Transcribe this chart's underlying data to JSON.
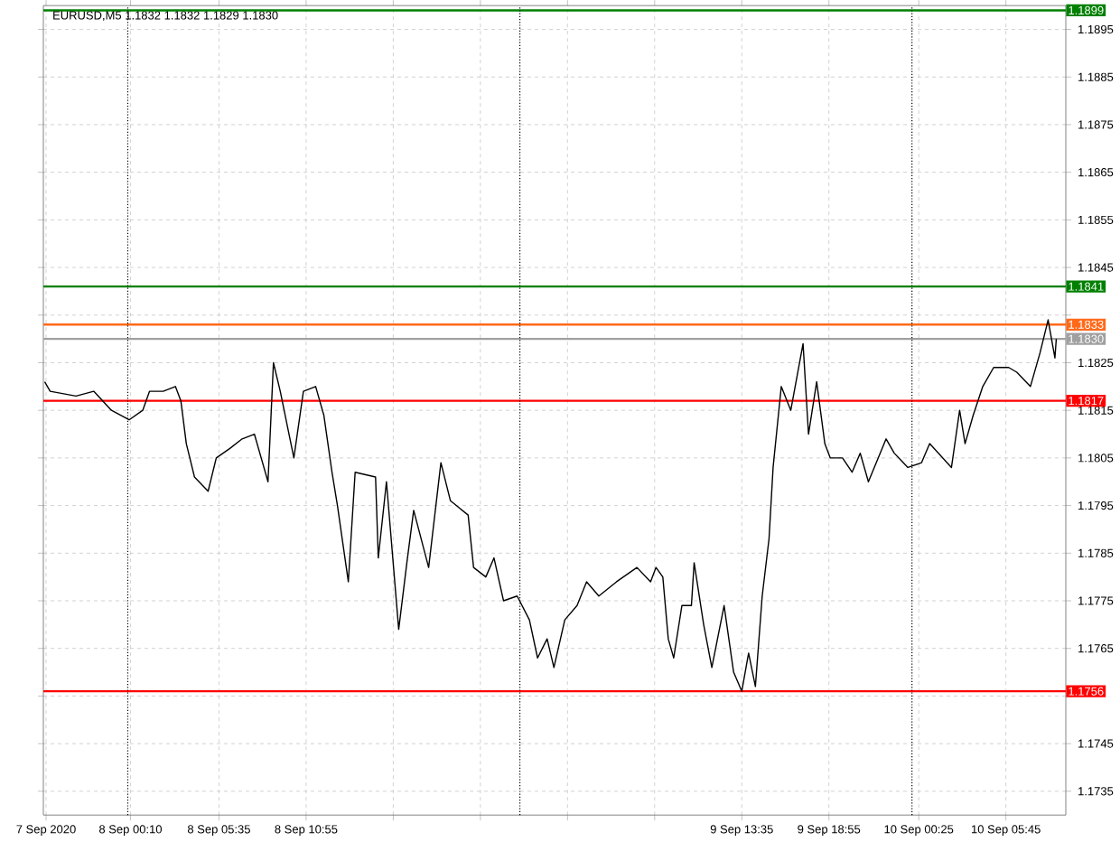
{
  "chart_data": {
    "type": "line",
    "title": "EURUSD,M5  1.1832 1.1832 1.1829 1.1830",
    "color": "#000000",
    "grid": true,
    "line_style": "solid",
    "marker": "none",
    "x": [
      "2020-09-07T18:55",
      "2020-09-07T19:15",
      "2020-09-07T20:50",
      "2020-09-07T21:55",
      "2020-09-07T23:00",
      "2020-09-08T00:05",
      "2020-09-08T00:55",
      "2020-09-08T01:20",
      "2020-09-08T02:10",
      "2020-09-08T02:55",
      "2020-09-08T03:15",
      "2020-09-08T03:35",
      "2020-09-08T04:05",
      "2020-09-08T04:55",
      "2020-09-08T05:25",
      "2020-09-08T06:15",
      "2020-09-08T07:00",
      "2020-09-08T07:45",
      "2020-09-08T08:35",
      "2020-09-08T08:55",
      "2020-09-08T09:20",
      "2020-09-08T10:10",
      "2020-09-08T10:45",
      "2020-09-08T11:30",
      "2020-09-08T12:00",
      "2020-09-08T12:30",
      "2020-09-08T12:50",
      "2020-09-08T13:30",
      "2020-09-08T13:55",
      "2020-09-08T15:10",
      "2020-09-08T15:20",
      "2020-09-08T15:50",
      "2020-09-08T16:35",
      "2020-09-08T17:05",
      "2020-09-08T17:30",
      "2020-09-08T18:25",
      "2020-09-08T19:10",
      "2020-09-08T19:45",
      "2020-09-08T20:50",
      "2020-09-08T21:10",
      "2020-09-08T21:55",
      "2020-09-08T22:25",
      "2020-09-08T23:00",
      "2020-09-08T23:50",
      "2020-09-09T00:35",
      "2020-09-09T01:05",
      "2020-09-09T01:40",
      "2020-09-09T02:05",
      "2020-09-09T02:45",
      "2020-09-09T03:30",
      "2020-09-09T04:05",
      "2020-09-09T04:50",
      "2020-09-09T05:55",
      "2020-09-09T07:10",
      "2020-09-09T08:00",
      "2020-09-09T08:20",
      "2020-09-09T08:45",
      "2020-09-09T09:05",
      "2020-09-09T09:25",
      "2020-09-09T09:55",
      "2020-09-09T10:30",
      "2020-09-09T10:40",
      "2020-09-09T11:15",
      "2020-09-09T11:45",
      "2020-09-09T12:30",
      "2020-09-09T13:05",
      "2020-09-09T13:35",
      "2020-09-09T14:00",
      "2020-09-09T14:25",
      "2020-09-09T14:50",
      "2020-09-09T15:15",
      "2020-09-09T15:30",
      "2020-09-09T16:00",
      "2020-09-09T16:35",
      "2020-09-09T17:20",
      "2020-09-09T17:40",
      "2020-09-09T18:10",
      "2020-09-09T18:40",
      "2020-09-09T19:00",
      "2020-09-09T19:45",
      "2020-09-09T20:20",
      "2020-09-09T20:50",
      "2020-09-09T21:20",
      "2020-09-09T22:25",
      "2020-09-09T22:55",
      "2020-09-09T23:45",
      "2020-09-10T00:35",
      "2020-09-10T01:05",
      "2020-09-10T02:25",
      "2020-09-10T02:55",
      "2020-09-10T03:15",
      "2020-09-10T03:45",
      "2020-09-10T04:20",
      "2020-09-10T05:00",
      "2020-09-10T05:55",
      "2020-09-10T06:25",
      "2020-09-10T07:15",
      "2020-09-10T07:50",
      "2020-09-10T08:20",
      "2020-09-10T08:45",
      "2020-09-10T08:50"
    ],
    "values": [
      1.1821,
      1.1819,
      1.1818,
      1.1819,
      1.1815,
      1.1813,
      1.1815,
      1.1819,
      1.1819,
      1.182,
      1.1817,
      1.1808,
      1.1801,
      1.1798,
      1.1805,
      1.1807,
      1.1809,
      1.181,
      1.18,
      1.1825,
      1.1819,
      1.1805,
      1.1819,
      1.182,
      1.1814,
      1.1802,
      1.1795,
      1.1779,
      1.1802,
      1.1801,
      1.1784,
      1.18,
      1.1769,
      1.1783,
      1.1794,
      1.1782,
      1.1804,
      1.1796,
      1.1793,
      1.1782,
      1.178,
      1.1784,
      1.1775,
      1.1776,
      1.1771,
      1.1763,
      1.1767,
      1.1761,
      1.1771,
      1.1774,
      1.1779,
      1.1776,
      1.1779,
      1.1782,
      1.1779,
      1.1782,
      1.178,
      1.1767,
      1.1763,
      1.1774,
      1.1774,
      1.1783,
      1.177,
      1.1761,
      1.1774,
      1.176,
      1.1756,
      1.1764,
      1.1757,
      1.1776,
      1.1788,
      1.1803,
      1.182,
      1.1815,
      1.1829,
      1.181,
      1.1821,
      1.1808,
      1.1805,
      1.1805,
      1.1802,
      1.1806,
      1.18,
      1.1809,
      1.1806,
      1.1803,
      1.1804,
      1.1808,
      1.1803,
      1.1815,
      1.1808,
      1.1814,
      1.182,
      1.1824,
      1.1824,
      1.1823,
      1.182,
      1.1827,
      1.1834,
      1.1826,
      1.183
    ],
    "xlim": [
      "2020-09-07T18:50",
      "2020-09-10T09:25"
    ],
    "ylim": [
      1.173,
      1.19
    ],
    "xticks": [
      {
        "value": "2020-09-07T19:00",
        "label": "7 Sep 2020"
      },
      {
        "value": "2020-09-08T00:10",
        "label": "8 Sep 00:10"
      },
      {
        "value": "2020-09-08T05:35",
        "label": "8 Sep 05:35"
      },
      {
        "value": "2020-09-08T10:55",
        "label": "8 Sep 10:55"
      },
      {
        "value": "2020-09-08T16:15",
        "label": null
      },
      {
        "value": "2020-09-08T21:35",
        "label": null
      },
      {
        "value": "2020-09-09T02:55",
        "label": null
      },
      {
        "value": "2020-09-09T08:15",
        "label": null
      },
      {
        "value": "2020-09-09T13:35",
        "label": "9 Sep 13:35"
      },
      {
        "value": "2020-09-09T18:55",
        "label": "9 Sep 18:55"
      },
      {
        "value": "2020-09-10T00:25",
        "label": "10 Sep 00:25"
      },
      {
        "value": "2020-09-10T05:45",
        "label": "10 Sep 05:45"
      }
    ],
    "yticks": [
      1.1735,
      1.1745,
      {
        "value": 1.1755,
        "label": null
      },
      1.1765,
      1.1775,
      1.1785,
      1.1795,
      1.1805,
      1.1815,
      1.1825,
      {
        "value": 1.1835,
        "label": null
      },
      1.1845,
      1.1855,
      1.1865,
      1.1875,
      1.1885,
      1.1895
    ],
    "ref_lines": [
      {
        "axis": "y",
        "value": 1.1899,
        "label": "1.1899",
        "color": "#008000"
      },
      {
        "axis": "y",
        "value": 1.1841,
        "label": "1.1841",
        "color": "#008000"
      },
      {
        "axis": "y",
        "value": 1.1833,
        "label": "1.1833",
        "color": "#ff6a1a"
      },
      {
        "axis": "y",
        "value": 1.183,
        "label": "1.1830",
        "color": "#a0a0a0"
      },
      {
        "axis": "y",
        "value": 1.1817,
        "label": "1.1817",
        "color": "#ff0000"
      },
      {
        "axis": "y",
        "value": 1.1756,
        "label": "1.1756",
        "color": "#ff0000"
      },
      {
        "axis": "x",
        "value": "2020-09-08T00:00",
        "color": "#000000",
        "line_style": "dotted"
      },
      {
        "axis": "x",
        "value": "2020-09-09T00:00",
        "color": "#000000",
        "line_style": "dotted"
      },
      {
        "axis": "x",
        "value": "2020-09-10T00:00",
        "color": "#000000",
        "line_style": "dotted"
      }
    ]
  }
}
